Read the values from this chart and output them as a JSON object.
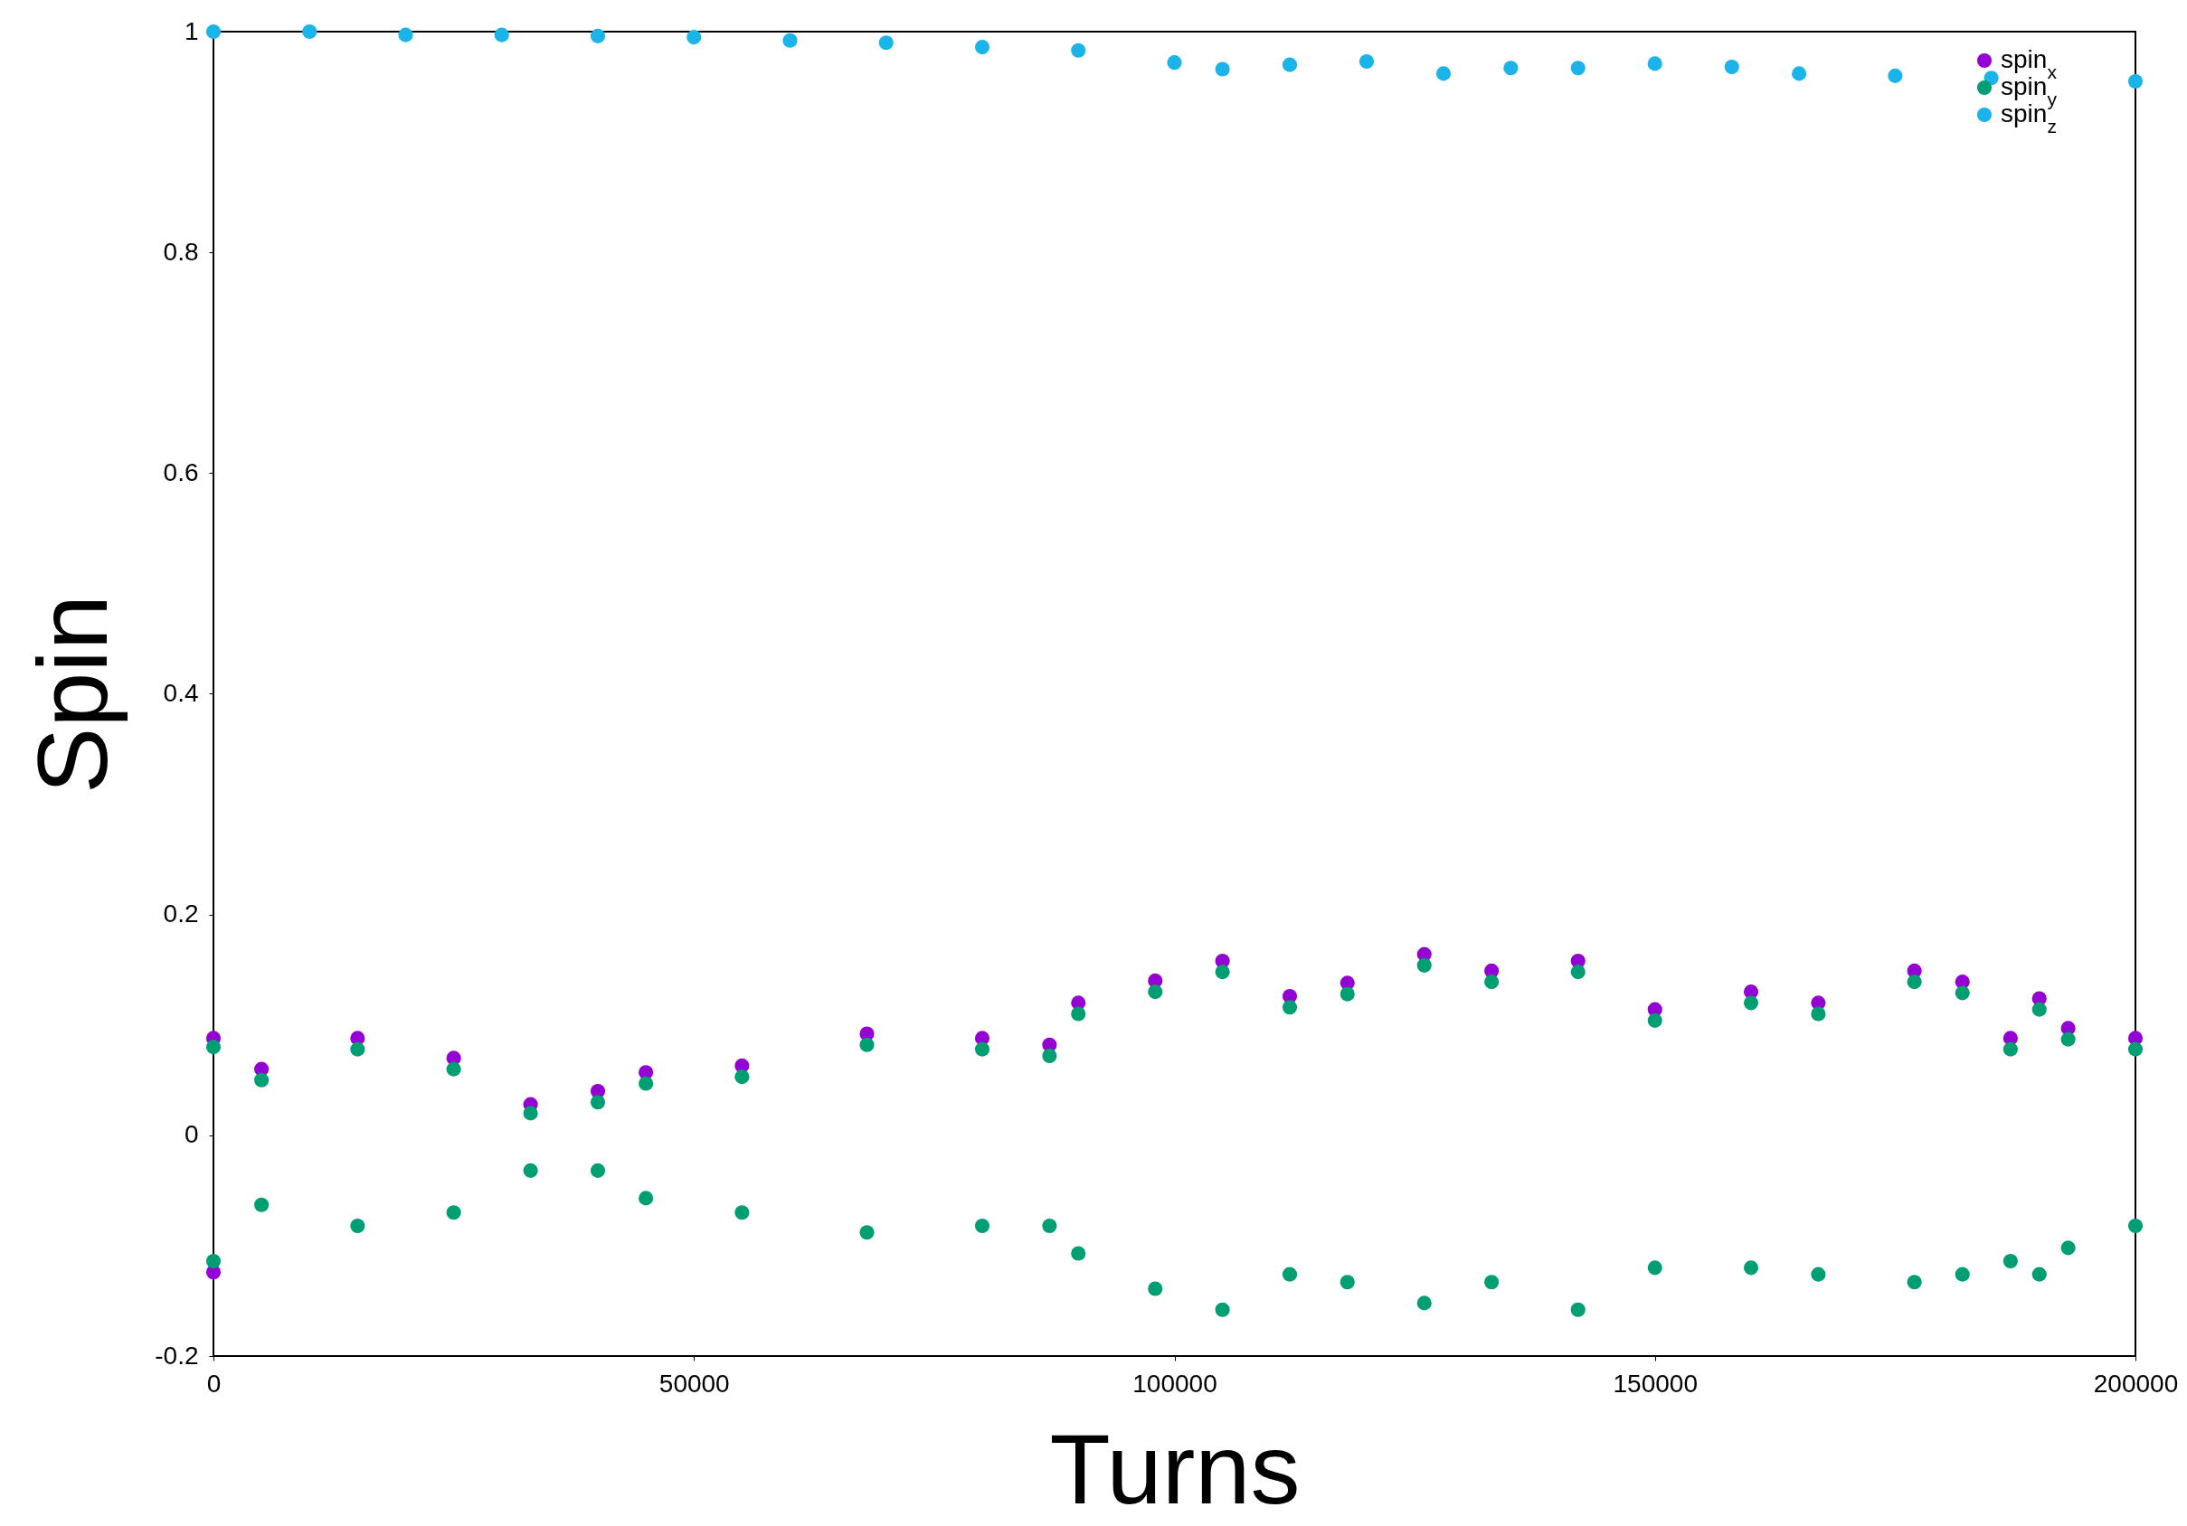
{
  "chart_data": {
    "type": "scatter",
    "xlabel": "Turns",
    "ylabel": "Spin",
    "xlim": [
      0,
      200000
    ],
    "ylim": [
      -0.2,
      1
    ],
    "xticks": [
      0,
      50000,
      100000,
      150000,
      200000
    ],
    "yticks": [
      -0.2,
      0,
      0.2,
      0.4,
      0.6,
      0.8,
      1
    ],
    "legend": "top right",
    "marker": "circle",
    "series": [
      {
        "name": "spin$_{x}$",
        "color": "#9400d3",
        "x": [
          0,
          0,
          5000,
          15000,
          25000,
          33000,
          40000,
          45000,
          55000,
          68000,
          80000,
          87000,
          90000,
          98000,
          105000,
          112000,
          118000,
          126000,
          133000,
          142000,
          150000,
          160000,
          167000,
          177000,
          182000,
          187000,
          190000,
          193000,
          200000
        ],
        "values": [
          0.088,
          -0.124,
          0.06,
          0.088,
          0.07,
          0.028,
          0.04,
          0.057,
          0.063,
          0.092,
          0.088,
          0.082,
          0.12,
          0.14,
          0.158,
          0.126,
          0.138,
          0.164,
          0.149,
          0.158,
          0.114,
          0.13,
          0.12,
          0.149,
          0.139,
          0.088,
          0.124,
          0.097,
          0.088
        ]
      },
      {
        "name": "spin$_{y}$",
        "color": "#009e73",
        "x": [
          0,
          0,
          5000,
          5000,
          15000,
          15000,
          25000,
          25000,
          33000,
          33000,
          40000,
          40000,
          45000,
          45000,
          55000,
          55000,
          68000,
          68000,
          80000,
          80000,
          87000,
          87000,
          90000,
          90000,
          98000,
          98000,
          105000,
          105000,
          112000,
          112000,
          118000,
          118000,
          126000,
          126000,
          133000,
          133000,
          142000,
          142000,
          150000,
          150000,
          160000,
          160000,
          167000,
          167000,
          177000,
          177000,
          182000,
          182000,
          187000,
          187000,
          190000,
          190000,
          193000,
          193000,
          200000,
          200000
        ],
        "values": [
          0.08,
          -0.114,
          0.05,
          -0.063,
          0.078,
          -0.082,
          0.06,
          -0.07,
          0.02,
          -0.032,
          0.03,
          -0.032,
          0.047,
          -0.057,
          0.053,
          -0.07,
          0.082,
          -0.088,
          0.078,
          -0.082,
          0.072,
          -0.082,
          0.11,
          -0.107,
          0.13,
          -0.139,
          0.148,
          -0.158,
          0.116,
          -0.126,
          0.128,
          -0.133,
          0.154,
          -0.152,
          0.139,
          -0.133,
          0.148,
          -0.158,
          0.104,
          -0.12,
          0.12,
          -0.12,
          0.11,
          -0.126,
          0.139,
          -0.133,
          0.129,
          -0.126,
          0.078,
          -0.114,
          0.114,
          -0.126,
          0.087,
          -0.102,
          0.078,
          -0.082
        ]
      },
      {
        "name": "spin$_{z}$",
        "color": "#1ab4e8",
        "x": [
          0,
          10000,
          20000,
          30000,
          40000,
          50000,
          60000,
          70000,
          80000,
          90000,
          100000,
          105000,
          112000,
          120000,
          128000,
          135000,
          142000,
          150000,
          158000,
          165000,
          175000,
          185000,
          200000
        ],
        "values": [
          1.0,
          1.0,
          0.997,
          0.997,
          0.996,
          0.995,
          0.992,
          0.99,
          0.986,
          0.983,
          0.972,
          0.966,
          0.97,
          0.973,
          0.962,
          0.967,
          0.967,
          0.971,
          0.968,
          0.962,
          0.96,
          0.958,
          0.955
        ]
      }
    ]
  }
}
